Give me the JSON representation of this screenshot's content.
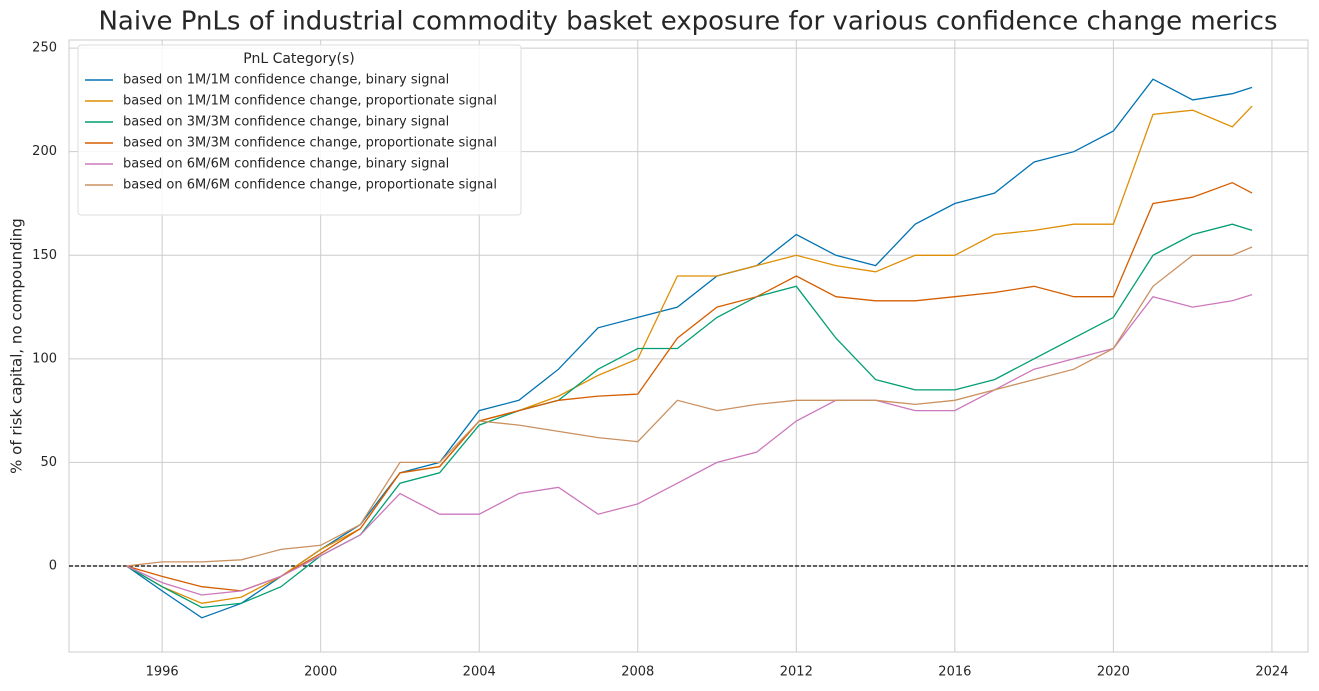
{
  "chart_data": {
    "type": "line",
    "title": "Naive PnLs of industrial commodity basket exposure for various confidence change merics",
    "y_label": "% of risk capital, no compounding",
    "legend_title": "PnL Category(s)",
    "legend": "upper left",
    "grid": true,
    "hline": 0,
    "x": [
      1995.1,
      1996,
      1997,
      1998,
      1999,
      2000,
      2001,
      2002,
      2003,
      2004,
      2005,
      2006,
      2007,
      2008,
      2009,
      2010,
      2011,
      2012,
      2013,
      2014,
      2015,
      2016,
      2017,
      2018,
      2019,
      2020,
      2021,
      2022,
      2023,
      2023.5
    ],
    "xlim": [
      1993.65,
      2024.91
    ],
    "xticks": [
      1996,
      2000,
      2004,
      2008,
      2012,
      2016,
      2020,
      2024
    ],
    "ylim": [
      -41.5,
      253.9
    ],
    "yticks": [
      0,
      50,
      100,
      150,
      200,
      250
    ],
    "series": [
      {
        "name": "based on 1M/1M confidence change, binary signal",
        "color": "#0173b2",
        "values": [
          0,
          -12,
          -25,
          -18,
          -5,
          8,
          20,
          45,
          50,
          75,
          80,
          95,
          115,
          120,
          125,
          140,
          145,
          160,
          150,
          145,
          165,
          175,
          180,
          195,
          200,
          210,
          235,
          225,
          228,
          231
        ]
      },
      {
        "name": "based on 1M/1M confidence change, proportionate signal",
        "color": "#de8f05",
        "values": [
          0,
          -10,
          -18,
          -15,
          -5,
          8,
          18,
          45,
          48,
          70,
          75,
          82,
          92,
          100,
          140,
          140,
          145,
          150,
          145,
          142,
          150,
          150,
          160,
          162,
          165,
          165,
          218,
          220,
          212,
          222
        ]
      },
      {
        "name": "based on 3M/3M confidence change, binary signal",
        "color": "#029e73",
        "values": [
          0,
          -10,
          -20,
          -18,
          -10,
          5,
          15,
          40,
          45,
          68,
          75,
          80,
          95,
          105,
          105,
          120,
          130,
          135,
          110,
          90,
          85,
          85,
          90,
          100,
          110,
          120,
          150,
          160,
          165,
          162
        ]
      },
      {
        "name": "based on 3M/3M confidence change, proportionate signal",
        "color": "#d55e00",
        "values": [
          0,
          -5,
          -10,
          -12,
          -5,
          6,
          18,
          45,
          48,
          70,
          75,
          80,
          82,
          83,
          110,
          125,
          130,
          140,
          130,
          128,
          128,
          130,
          132,
          135,
          130,
          130,
          175,
          178,
          185,
          180
        ]
      },
      {
        "name": "based on 6M/6M confidence change, binary signal",
        "color": "#cc78bc",
        "values": [
          0,
          -8,
          -14,
          -12,
          -5,
          5,
          15,
          35,
          25,
          25,
          35,
          38,
          25,
          30,
          40,
          50,
          55,
          70,
          80,
          80,
          75,
          75,
          85,
          95,
          100,
          105,
          130,
          125,
          128,
          131
        ]
      },
      {
        "name": "based on 6M/6M confidence change, proportionate signal",
        "color": "#ca9161",
        "values": [
          0,
          2,
          2,
          3,
          8,
          10,
          20,
          50,
          50,
          70,
          68,
          65,
          62,
          60,
          80,
          75,
          78,
          80,
          80,
          80,
          78,
          80,
          85,
          90,
          95,
          105,
          135,
          150,
          150,
          154
        ]
      }
    ]
  }
}
